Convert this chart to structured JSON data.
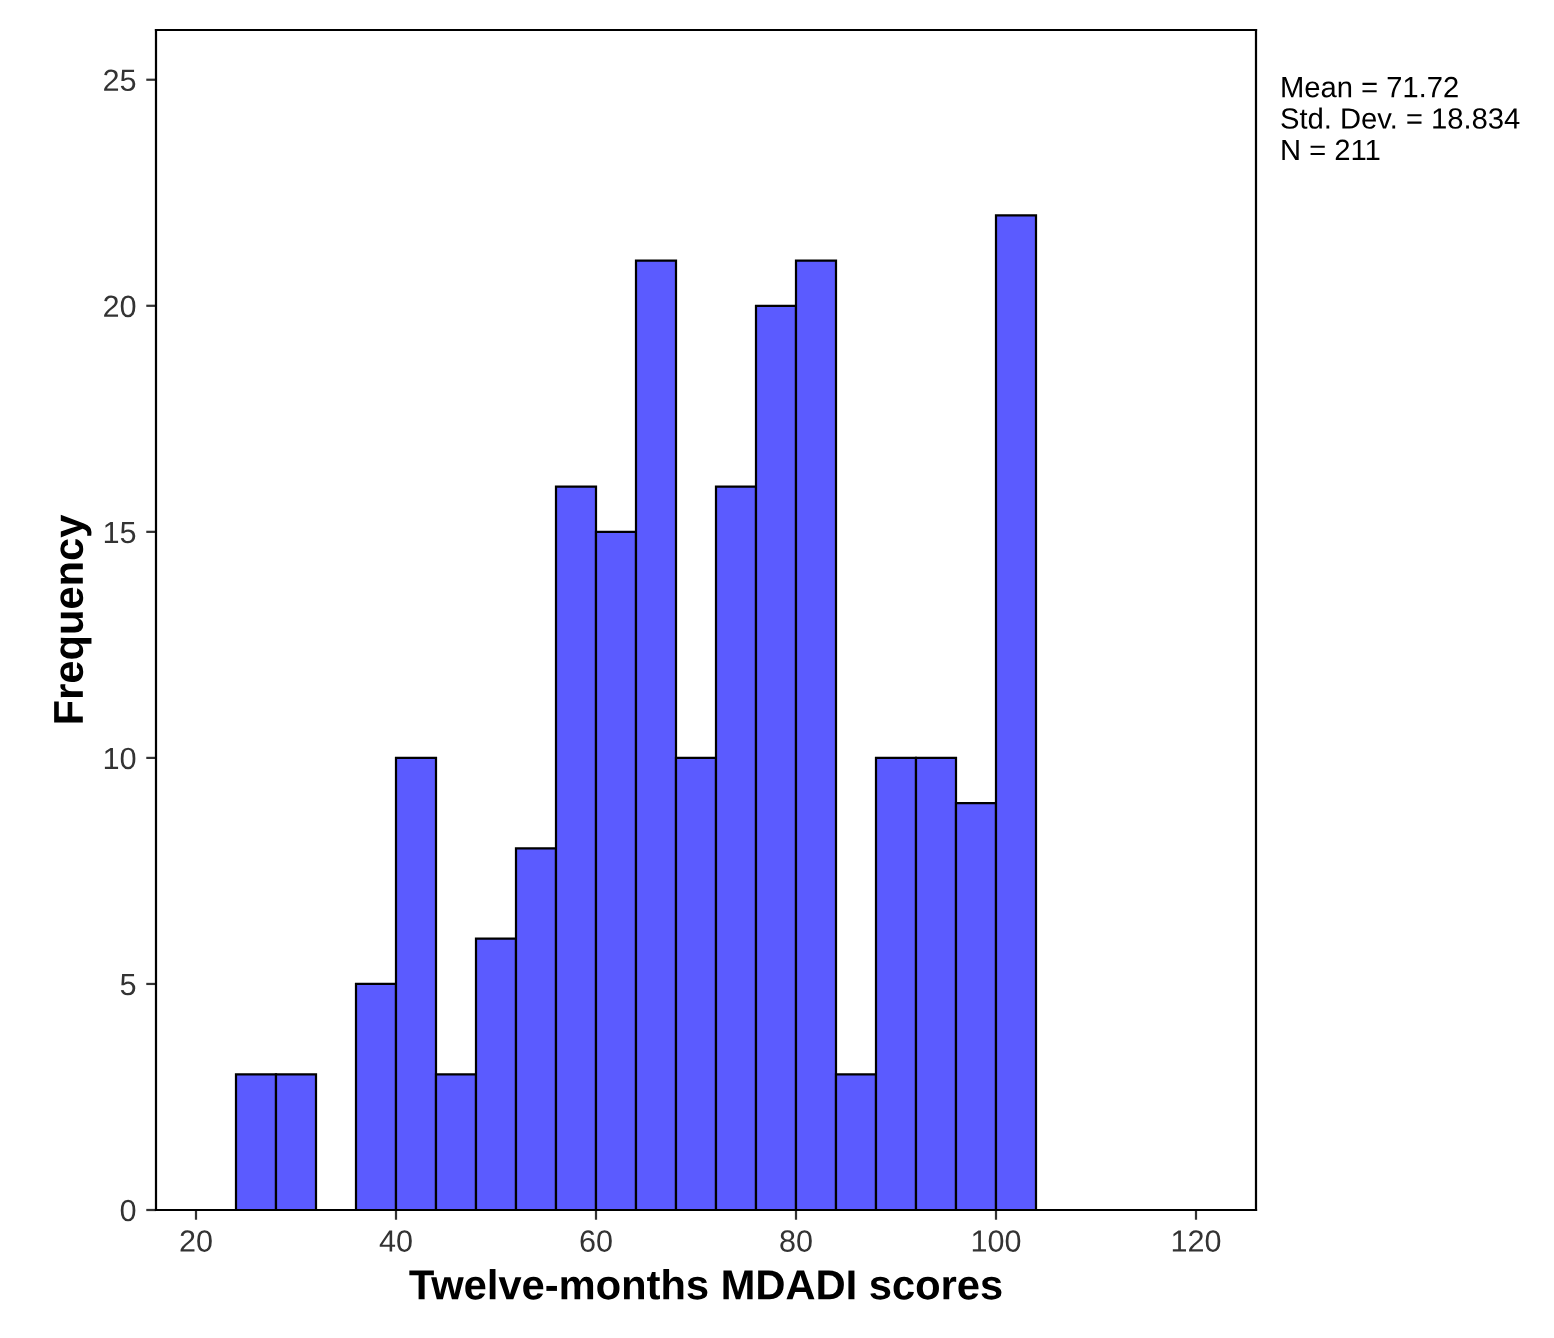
{
  "chart_data": {
    "type": "histogram",
    "xlabel": "Twelve-months MDADI scores",
    "ylabel": "Frequency",
    "bins": [
      24,
      28,
      32,
      36,
      40,
      44,
      48,
      52,
      56,
      60,
      64,
      68,
      72,
      76,
      80,
      84,
      88,
      92,
      96,
      100,
      104
    ],
    "values": [
      3,
      3,
      0,
      5,
      10,
      3,
      6,
      8,
      16,
      15,
      21,
      10,
      16,
      20,
      21,
      3,
      10,
      10,
      9,
      22
    ],
    "color": "#5b5bff",
    "xlim": [
      16,
      126
    ],
    "ylim": [
      0,
      26.1
    ],
    "xticks": [
      20,
      40,
      60,
      80,
      100,
      120
    ],
    "yticks": [
      0,
      5,
      10,
      15,
      20,
      25
    ],
    "grid": false,
    "annotations": [
      "Mean = 71.72\nStd. Dev. = 18.834\nN = 211"
    ]
  }
}
